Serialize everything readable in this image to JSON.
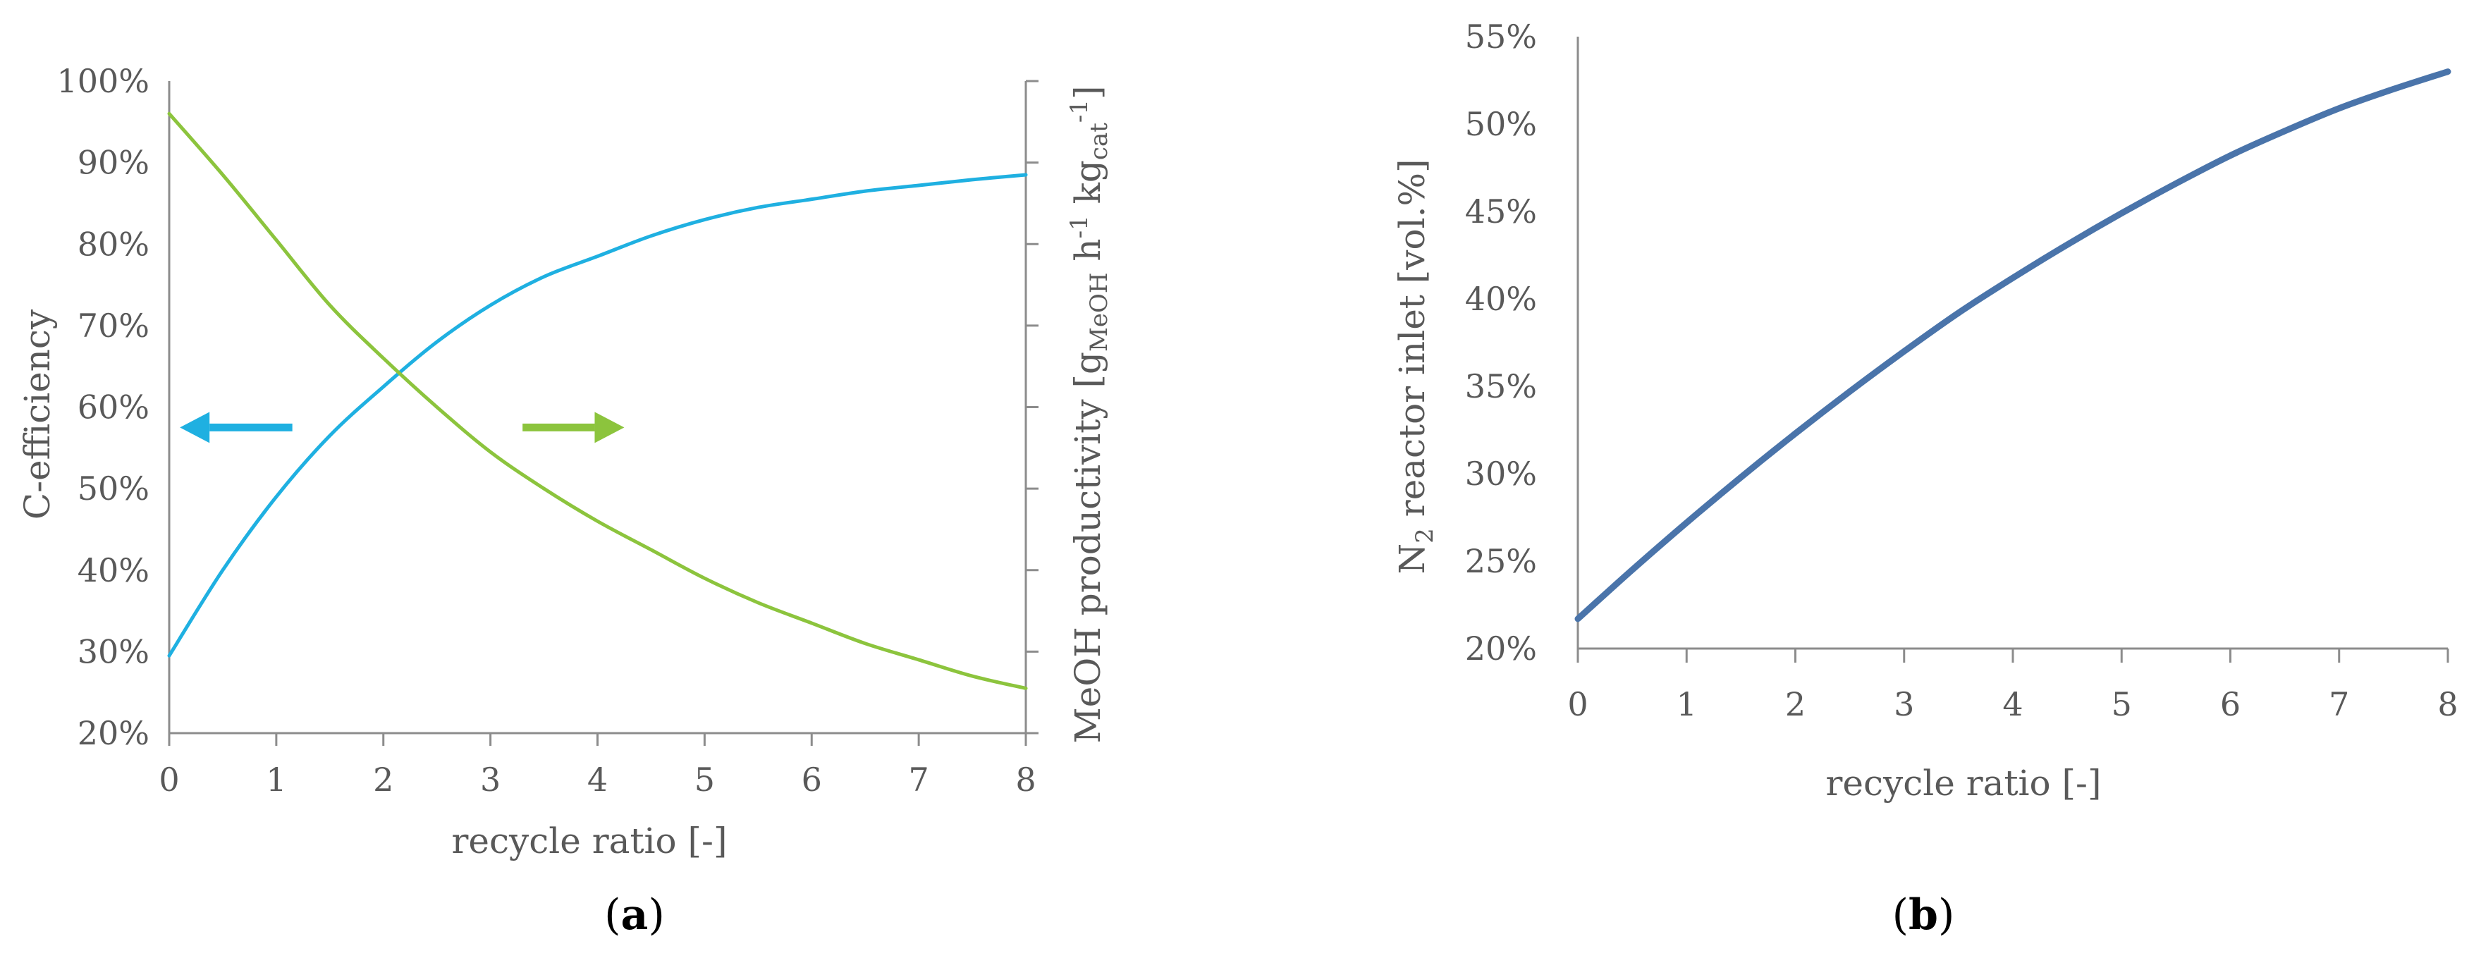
{
  "colors": {
    "blue": "#1fb0e1",
    "green": "#8cc43d",
    "navy": "#4a74aa",
    "axis": "#8c8c8c",
    "text": "#595959"
  },
  "chart_data": [
    {
      "panel": "a",
      "type": "line",
      "xlabel": "recycle ratio [-]",
      "ylabel": "C-efficiency",
      "ylabel_right": {
        "base": "MeOH productivity ",
        "bracket_open": "[g",
        "sub1": "MeOH",
        "h": " h",
        "sup1": "-1",
        "kg": " kg",
        "sub2": "cat",
        "sup2": "-1",
        "bracket_close": "]"
      },
      "xlim": [
        0,
        8
      ],
      "ylim": [
        0.2,
        1.0
      ],
      "x_ticks": [
        "0",
        "1",
        "2",
        "3",
        "4",
        "5",
        "6",
        "7",
        "8"
      ],
      "y_ticks": [
        "20%",
        "30%",
        "40%",
        "50%",
        "60%",
        "70%",
        "80%",
        "90%",
        "100%"
      ],
      "right_axis_ticks": 8,
      "series": [
        {
          "color": "blue",
          "axis": "left",
          "x": [
            0,
            0.5,
            1,
            1.5,
            2,
            2.5,
            3,
            3.5,
            4,
            4.5,
            5,
            5.5,
            6,
            6.5,
            7,
            7.5,
            8
          ],
          "y": [
            0.295,
            0.4,
            0.49,
            0.565,
            0.625,
            0.68,
            0.725,
            0.76,
            0.785,
            0.81,
            0.83,
            0.845,
            0.855,
            0.865,
            0.872,
            0.879,
            0.885
          ]
        },
        {
          "color": "green",
          "axis": "right",
          "x": [
            0,
            0.5,
            1,
            1.5,
            2,
            2.5,
            3,
            3.5,
            4,
            4.5,
            5,
            5.5,
            6,
            6.5,
            7,
            7.5,
            8
          ],
          "y": [
            0.96,
            0.885,
            0.805,
            0.725,
            0.66,
            0.6,
            0.545,
            0.5,
            0.46,
            0.425,
            0.39,
            0.36,
            0.335,
            0.31,
            0.29,
            0.27,
            0.255
          ]
        }
      ],
      "arrows": [
        {
          "color": "blue",
          "direction": "left",
          "x_from": 1.15,
          "x_to": 0.1,
          "y": 0.575
        },
        {
          "color": "green",
          "direction": "right",
          "x_from": 3.3,
          "x_to": 4.25,
          "y": 0.575
        }
      ],
      "caption": "a"
    },
    {
      "panel": "b",
      "type": "line",
      "xlabel": "recycle ratio [-]",
      "ylabel": {
        "pre": "N",
        "sub": "2",
        "post": " reactor inlet [vol.%]"
      },
      "xlim": [
        0,
        8
      ],
      "ylim": [
        0.2,
        0.55
      ],
      "x_ticks": [
        "0",
        "1",
        "2",
        "3",
        "4",
        "5",
        "6",
        "7",
        "8"
      ],
      "y_ticks": [
        "20%",
        "25%",
        "30%",
        "35%",
        "40%",
        "45%",
        "50%",
        "55%"
      ],
      "series": [
        {
          "color": "navy",
          "x": [
            0,
            0.5,
            1,
            1.5,
            2,
            2.5,
            3,
            3.5,
            4,
            4.5,
            5,
            5.5,
            6,
            6.5,
            7,
            7.5,
            8
          ],
          "y": [
            0.217,
            0.245,
            0.272,
            0.298,
            0.323,
            0.347,
            0.37,
            0.392,
            0.412,
            0.431,
            0.449,
            0.466,
            0.482,
            0.496,
            0.509,
            0.52,
            0.53
          ]
        }
      ],
      "caption": "b"
    }
  ]
}
